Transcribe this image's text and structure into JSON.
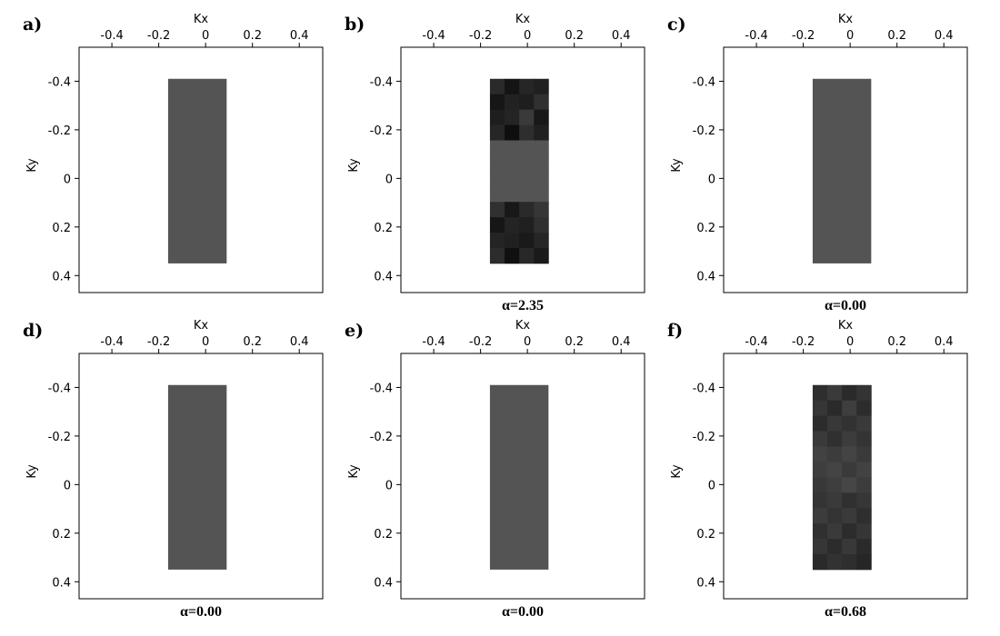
{
  "figure": {
    "background": "#ffffff",
    "colors": {
      "uniform": "#545454",
      "frame": "#000000"
    }
  },
  "chart_data": [
    {
      "panel": "a)",
      "type": "heatmap",
      "xlabel": "Kx",
      "ylabel": "Ky",
      "xlim": [
        -0.54,
        0.5
      ],
      "ylim": [
        -0.54,
        0.47
      ],
      "y_inverted": true,
      "xticks": [
        -0.4,
        -0.2,
        0,
        0.2,
        0.4
      ],
      "yticks": [
        -0.4,
        -0.2,
        0,
        0.2,
        0.4
      ],
      "xtick_labels": [
        "-0.4",
        "-0.2",
        "0",
        "0.2",
        "0.4"
      ],
      "ytick_labels": [
        "-0.4",
        "-0.2",
        "0",
        "0.2",
        "0.4"
      ],
      "extent": {
        "kx": [
          -0.16,
          0.09
        ],
        "ky": [
          -0.41,
          0.35
        ]
      },
      "fill": "uniform",
      "caption": ""
    },
    {
      "panel": "b)",
      "type": "heatmap",
      "xlabel": "Kx",
      "ylabel": "Ky",
      "xlim": [
        -0.54,
        0.5
      ],
      "ylim": [
        -0.54,
        0.47
      ],
      "y_inverted": true,
      "xticks": [
        -0.4,
        -0.2,
        0,
        0.2,
        0.4
      ],
      "yticks": [
        -0.4,
        -0.2,
        0,
        0.2,
        0.4
      ],
      "xtick_labels": [
        "-0.4",
        "-0.2",
        "0",
        "0.2",
        "0.4"
      ],
      "ytick_labels": [
        "-0.4",
        "-0.2",
        "0",
        "0.2",
        "0.4"
      ],
      "extent": {
        "kx": [
          -0.16,
          0.09
        ],
        "ky": [
          -0.41,
          0.35
        ]
      },
      "fill": "grid",
      "grid": [
        [
          "#2a2a2a",
          "#141414",
          "#262626",
          "#202020"
        ],
        [
          "#161616",
          "#222222",
          "#1e1e1e",
          "#303030"
        ],
        [
          "#1e1e1e",
          "#242424",
          "#3a3a3a",
          "#181818"
        ],
        [
          "#262626",
          "#0e0e0e",
          "#2e2e2e",
          "#202020"
        ],
        [
          "#545454",
          "#545454",
          "#545454",
          "#545454"
        ],
        [
          "#545454",
          "#545454",
          "#545454",
          "#545454"
        ],
        [
          "#545454",
          "#545454",
          "#545454",
          "#545454"
        ],
        [
          "#545454",
          "#545454",
          "#545454",
          "#545454"
        ],
        [
          "#303030",
          "#181818",
          "#2a2a2a",
          "#363636"
        ],
        [
          "#161616",
          "#242424",
          "#202020",
          "#303030"
        ],
        [
          "#242424",
          "#202020",
          "#1a1a1a",
          "#262626"
        ],
        [
          "#2c2c2c",
          "#101010",
          "#282828",
          "#1a1a1a"
        ]
      ],
      "caption": "α=2.35"
    },
    {
      "panel": "c)",
      "type": "heatmap",
      "xlabel": "Kx",
      "ylabel": "Ky",
      "xlim": [
        -0.54,
        0.5
      ],
      "ylim": [
        -0.54,
        0.47
      ],
      "y_inverted": true,
      "xticks": [
        -0.4,
        -0.2,
        0,
        0.2,
        0.4
      ],
      "yticks": [
        -0.4,
        -0.2,
        0,
        0.2,
        0.4
      ],
      "xtick_labels": [
        "-0.4",
        "-0.2",
        "0",
        "0.2",
        "0.4"
      ],
      "ytick_labels": [
        "-0.4",
        "-0.2",
        "0",
        "0.2",
        "0.4"
      ],
      "extent": {
        "kx": [
          -0.16,
          0.09
        ],
        "ky": [
          -0.41,
          0.35
        ]
      },
      "fill": "uniform",
      "caption": "α=0.00"
    },
    {
      "panel": "d)",
      "type": "heatmap",
      "xlabel": "Kx",
      "ylabel": "Ky",
      "xlim": [
        -0.54,
        0.5
      ],
      "ylim": [
        -0.54,
        0.47
      ],
      "y_inverted": true,
      "xticks": [
        -0.4,
        -0.2,
        0,
        0.2,
        0.4
      ],
      "yticks": [
        -0.4,
        -0.2,
        0,
        0.2,
        0.4
      ],
      "xtick_labels": [
        "-0.4",
        "-0.2",
        "0",
        "0.2",
        "0.4"
      ],
      "ytick_labels": [
        "-0.4",
        "-0.2",
        "0",
        "0.2",
        "0.4"
      ],
      "extent": {
        "kx": [
          -0.16,
          0.09
        ],
        "ky": [
          -0.41,
          0.35
        ]
      },
      "fill": "uniform",
      "caption": "α=0.00"
    },
    {
      "panel": "e)",
      "type": "heatmap",
      "xlabel": "Kx",
      "ylabel": "Ky",
      "xlim": [
        -0.54,
        0.5
      ],
      "ylim": [
        -0.54,
        0.47
      ],
      "y_inverted": true,
      "xticks": [
        -0.4,
        -0.2,
        0,
        0.2,
        0.4
      ],
      "yticks": [
        -0.4,
        -0.2,
        0,
        0.2,
        0.4
      ],
      "xtick_labels": [
        "-0.4",
        "-0.2",
        "0",
        "0.2",
        "0.4"
      ],
      "ytick_labels": [
        "-0.4",
        "-0.2",
        "0",
        "0.2",
        "0.4"
      ],
      "extent": {
        "kx": [
          -0.16,
          0.09
        ],
        "ky": [
          -0.41,
          0.35
        ]
      },
      "fill": "uniform",
      "caption": "α=0.00"
    },
    {
      "panel": "f)",
      "type": "heatmap",
      "xlabel": "Kx",
      "ylabel": "Ky",
      "xlim": [
        -0.54,
        0.5
      ],
      "ylim": [
        -0.54,
        0.47
      ],
      "y_inverted": true,
      "xticks": [
        -0.4,
        -0.2,
        0,
        0.2,
        0.4
      ],
      "yticks": [
        -0.4,
        -0.2,
        0,
        0.2,
        0.4
      ],
      "xtick_labels": [
        "-0.4",
        "-0.2",
        "0",
        "0.2",
        "0.4"
      ],
      "ytick_labels": [
        "-0.4",
        "-0.2",
        "0",
        "0.2",
        "0.4"
      ],
      "extent": {
        "kx": [
          -0.16,
          0.09
        ],
        "ky": [
          -0.41,
          0.35
        ]
      },
      "fill": "grid",
      "grid": [
        [
          "#2e2e2e",
          "#3a3a3a",
          "#2a2a2a",
          "#343434"
        ],
        [
          "#363636",
          "#2a2a2a",
          "#3e3e3e",
          "#2c2c2c"
        ],
        [
          "#2c2c2c",
          "#383838",
          "#323232",
          "#3a3a3a"
        ],
        [
          "#3a3a3a",
          "#303030",
          "#3c3c3c",
          "#343434"
        ],
        [
          "#424242",
          "#3c3c3c",
          "#444444",
          "#3a3a3a"
        ],
        [
          "#3e3e3e",
          "#444444",
          "#3a3a3a",
          "#424242"
        ],
        [
          "#383838",
          "#3e3e3e",
          "#464646",
          "#3c3c3c"
        ],
        [
          "#343434",
          "#3a3a3a",
          "#303030",
          "#363636"
        ],
        [
          "#3c3c3c",
          "#343434",
          "#3a3a3a",
          "#2e2e2e"
        ],
        [
          "#303030",
          "#3a3a3a",
          "#2c2c2c",
          "#363636"
        ],
        [
          "#363636",
          "#2c2c2c",
          "#383838",
          "#2a2a2a"
        ],
        [
          "#2a2a2a",
          "#323232",
          "#2e2e2e",
          "#262626"
        ]
      ],
      "caption": "α=0.68"
    }
  ]
}
